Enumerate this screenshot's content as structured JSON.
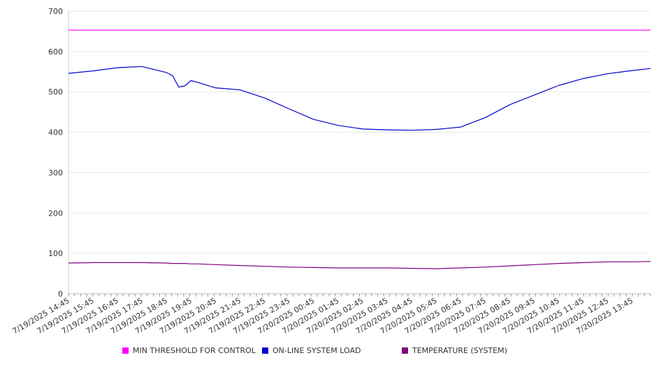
{
  "chart_data": {
    "type": "line",
    "title": "",
    "xlabel": "",
    "ylabel": "",
    "ylim": [
      0,
      700
    ],
    "yticks": [
      0,
      100,
      200,
      300,
      400,
      500,
      600,
      700
    ],
    "grid": true,
    "legend_position": "bottom",
    "x_labels": [
      "7/19/2025 14:45",
      "7/19/2025 15:45",
      "7/19/2025 16:45",
      "7/19/2025 17:45",
      "7/19/2025 18:45",
      "7/19/2025 19:45",
      "7/19/2025 20:45",
      "7/19/2025 21:45",
      "7/19/2025 22:45",
      "7/19/2025 23:45",
      "7/20/2025 00:45",
      "7/20/2025 01:45",
      "7/20/2025 02:45",
      "7/20/2025 03:45",
      "7/20/2025 04:45",
      "7/20/2025 05:45",
      "7/20/2025 06:45",
      "7/20/2025 07:45",
      "7/20/2025 08:45",
      "7/20/2025 09:45",
      "7/20/2025 10:45",
      "7/20/2025 11:45",
      "7/20/2025 12:45",
      "7/20/2025 13:45"
    ],
    "x": [
      "7/19/2025 14:45",
      "7/19/2025 15:45",
      "7/19/2025 16:45",
      "7/19/2025 17:45",
      "7/19/2025 18:45",
      "7/19/2025 19:00",
      "7/19/2025 19:15",
      "7/19/2025 19:30",
      "7/19/2025 19:45",
      "7/19/2025 20:00",
      "7/19/2025 20:45",
      "7/19/2025 21:45",
      "7/19/2025 22:45",
      "7/19/2025 23:45",
      "7/20/2025 00:45",
      "7/20/2025 01:45",
      "7/20/2025 02:45",
      "7/20/2025 03:45",
      "7/20/2025 04:45",
      "7/20/2025 05:45",
      "7/20/2025 06:45",
      "7/20/2025 07:45",
      "7/20/2025 08:45",
      "7/20/2025 09:45",
      "7/20/2025 10:45",
      "7/20/2025 11:45",
      "7/20/2025 12:45",
      "7/20/2025 13:45",
      "7/20/2025 14:30"
    ],
    "series": [
      {
        "name": "MIN THRESHOLD FOR CONTROL",
        "color": "#ff00ff",
        "values": [
          653,
          653,
          653,
          653,
          653,
          653,
          653,
          653,
          653,
          653,
          653,
          653,
          653,
          653,
          653,
          653,
          653,
          653,
          653,
          653,
          653,
          653,
          653,
          653,
          653,
          653,
          653,
          653,
          653
        ]
      },
      {
        "name": "ON-LINE SYSTEM LOAD",
        "color": "#0000cc",
        "values": [
          546,
          552,
          560,
          563,
          548,
          540,
          512,
          515,
          528,
          524,
          510,
          505,
          485,
          458,
          432,
          417,
          408,
          406,
          405,
          407,
          413,
          436,
          468,
          492,
          516,
          533,
          545,
          553,
          558
        ]
      },
      {
        "name": "TEMPERATURE (SYSTEM)",
        "color": "#800080",
        "values": [
          76,
          77,
          77,
          77,
          76,
          75,
          75,
          75,
          74,
          74,
          72,
          70,
          68,
          66,
          65,
          64,
          64,
          64,
          63,
          62,
          64,
          66,
          69,
          72,
          75,
          77,
          79,
          79,
          80
        ]
      }
    ]
  }
}
